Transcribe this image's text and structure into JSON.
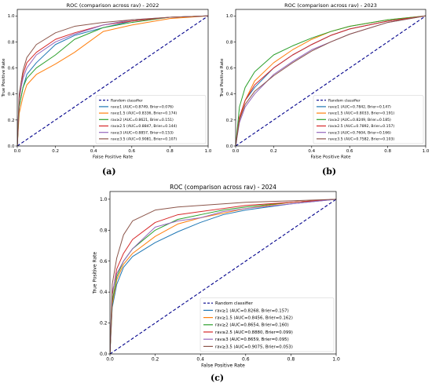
{
  "figure": {
    "captions": [
      "(a)",
      "(b)",
      "(c)"
    ]
  },
  "chart_data": [
    {
      "type": "line",
      "title": "ROC (comparison across rav) - 2022",
      "xlabel": "False Positive Rate",
      "ylabel": "True Positive Rate",
      "xlim": [
        0,
        1
      ],
      "ylim": [
        0,
        1.05
      ],
      "xticks": [
        "0.0",
        "0.2",
        "0.4",
        "0.6",
        "0.8",
        "1.0"
      ],
      "yticks": [
        "0.0",
        "0.2",
        "0.4",
        "0.6",
        "0.8",
        "1.0"
      ],
      "grid": false,
      "legend_position": "bottom-right",
      "random_line": {
        "name": "Random classifier",
        "color": "#00008b",
        "x": [
          0,
          1
        ],
        "y": [
          0,
          1
        ]
      },
      "series": [
        {
          "name": "rav≥1 (AUC=0.8749, Brier=0.076)",
          "color": "#1f77b4",
          "x": [
            0,
            0.01,
            0.03,
            0.05,
            0.1,
            0.2,
            0.3,
            0.45,
            0.6,
            0.8,
            1.0
          ],
          "y": [
            0,
            0.3,
            0.45,
            0.55,
            0.64,
            0.78,
            0.85,
            0.91,
            0.96,
            0.99,
            1.0
          ]
        },
        {
          "name": "rav≥1.5 (AUC=0.8336, Brier=0.174)",
          "color": "#ff7f0e",
          "x": [
            0,
            0.01,
            0.03,
            0.05,
            0.1,
            0.2,
            0.3,
            0.45,
            0.6,
            0.8,
            1.0
          ],
          "y": [
            0,
            0.25,
            0.38,
            0.47,
            0.55,
            0.63,
            0.72,
            0.88,
            0.93,
            0.98,
            1.0
          ]
        },
        {
          "name": "rav≥2 (AUC=0.8621, Brier=0.151)",
          "color": "#2ca02c",
          "x": [
            0,
            0.01,
            0.03,
            0.05,
            0.1,
            0.2,
            0.3,
            0.45,
            0.6,
            0.8,
            1.0
          ],
          "y": [
            0,
            0.3,
            0.45,
            0.52,
            0.6,
            0.7,
            0.82,
            0.91,
            0.95,
            0.99,
            1.0
          ]
        },
        {
          "name": "rav≥2.5 (AUC=0.8847, Brier=0.144)",
          "color": "#d62728",
          "x": [
            0,
            0.01,
            0.03,
            0.05,
            0.1,
            0.2,
            0.3,
            0.45,
            0.6,
            0.8,
            1.0
          ],
          "y": [
            0,
            0.35,
            0.55,
            0.64,
            0.72,
            0.82,
            0.87,
            0.93,
            0.96,
            0.99,
            1.0
          ]
        },
        {
          "name": "rav≥3 (AUC=0.8857, Brier=0.153)",
          "color": "#9467bd",
          "x": [
            0,
            0.01,
            0.03,
            0.05,
            0.1,
            0.2,
            0.3,
            0.45,
            0.6,
            0.8,
            1.0
          ],
          "y": [
            0,
            0.38,
            0.52,
            0.6,
            0.7,
            0.8,
            0.86,
            0.93,
            0.97,
            0.99,
            1.0
          ]
        },
        {
          "name": "rav≥3.5 (AUC=0.9081, Brier=0.107)",
          "color": "#8c564b",
          "x": [
            0,
            0.01,
            0.03,
            0.05,
            0.1,
            0.2,
            0.3,
            0.45,
            0.6,
            0.8,
            1.0
          ],
          "y": [
            0,
            0.4,
            0.58,
            0.68,
            0.78,
            0.87,
            0.92,
            0.95,
            0.97,
            0.99,
            1.0
          ]
        }
      ]
    },
    {
      "type": "line",
      "title": "ROC (comparison across rav) - 2023",
      "xlabel": "False Positive Rate",
      "ylabel": "True Positive Rate",
      "xlim": [
        0,
        1
      ],
      "ylim": [
        0,
        1.05
      ],
      "xticks": [
        "0.0",
        "0.2",
        "0.4",
        "0.6",
        "0.8",
        "1.0"
      ],
      "yticks": [
        "0.0",
        "0.2",
        "0.4",
        "0.6",
        "0.8",
        "1.0"
      ],
      "grid": false,
      "legend_position": "bottom-right",
      "random_line": {
        "name": "Random classifier",
        "color": "#00008b",
        "x": [
          0,
          1
        ],
        "y": [
          0,
          1
        ]
      },
      "series": [
        {
          "name": "rav≥1 (AUC=0.7842, Brier=0.147)",
          "color": "#1f77b4",
          "x": [
            0,
            0.02,
            0.05,
            0.1,
            0.2,
            0.3,
            0.4,
            0.5,
            0.6,
            0.8,
            1.0
          ],
          "y": [
            0,
            0.22,
            0.35,
            0.45,
            0.6,
            0.7,
            0.78,
            0.85,
            0.9,
            0.96,
            1.0
          ]
        },
        {
          "name": "rav≥1.5 (AUC=0.8033, Brier=0.191)",
          "color": "#ff7f0e",
          "x": [
            0,
            0.02,
            0.05,
            0.1,
            0.2,
            0.3,
            0.4,
            0.5,
            0.6,
            0.8,
            1.0
          ],
          "y": [
            0,
            0.2,
            0.35,
            0.5,
            0.64,
            0.74,
            0.82,
            0.88,
            0.92,
            0.97,
            1.0
          ]
        },
        {
          "name": "rav≥2 (AUC=0.8249, Brier=0.185)",
          "color": "#2ca02c",
          "x": [
            0,
            0.02,
            0.05,
            0.1,
            0.2,
            0.3,
            0.4,
            0.5,
            0.6,
            0.8,
            1.0
          ],
          "y": [
            0,
            0.3,
            0.45,
            0.57,
            0.7,
            0.77,
            0.83,
            0.88,
            0.92,
            0.97,
            1.0
          ]
        },
        {
          "name": "rav≥2.5 (AUC=0.7892, Brier=0.157)",
          "color": "#d62728",
          "x": [
            0,
            0.02,
            0.05,
            0.1,
            0.2,
            0.3,
            0.4,
            0.5,
            0.6,
            0.8,
            1.0
          ],
          "y": [
            0,
            0.22,
            0.35,
            0.47,
            0.6,
            0.7,
            0.78,
            0.85,
            0.9,
            0.96,
            1.0
          ]
        },
        {
          "name": "rav≥3 (AUC=0.7604, Brier=0.166)",
          "color": "#9467bd",
          "x": [
            0,
            0.02,
            0.05,
            0.1,
            0.2,
            0.3,
            0.4,
            0.5,
            0.6,
            0.8,
            1.0
          ],
          "y": [
            0,
            0.18,
            0.3,
            0.4,
            0.55,
            0.65,
            0.74,
            0.8,
            0.86,
            0.95,
            1.0
          ]
        },
        {
          "name": "rav≥3.5 (AUC=0.7582, Brier=0.103)",
          "color": "#8c564b",
          "x": [
            0,
            0.02,
            0.05,
            0.1,
            0.2,
            0.3,
            0.4,
            0.5,
            0.6,
            0.8,
            1.0
          ],
          "y": [
            0,
            0.2,
            0.32,
            0.42,
            0.54,
            0.64,
            0.73,
            0.8,
            0.86,
            0.95,
            1.0
          ]
        }
      ]
    },
    {
      "type": "line",
      "title": "ROC (comparison across rav) - 2024",
      "xlabel": "False Positive Rate",
      "ylabel": "True Positive Rate",
      "xlim": [
        0,
        1
      ],
      "ylim": [
        0,
        1.05
      ],
      "xticks": [
        "0.0",
        "0.2",
        "0.4",
        "0.6",
        "0.8",
        "1.0"
      ],
      "yticks": [
        "0.0",
        "0.2",
        "0.4",
        "0.6",
        "0.8",
        "1.0"
      ],
      "grid": false,
      "legend_position": "bottom-right",
      "random_line": {
        "name": "Random classifier",
        "color": "#00008b",
        "x": [
          0,
          1
        ],
        "y": [
          0,
          1
        ]
      },
      "series": [
        {
          "name": "rav≥1 (AUC=0.8268, Brier=0.157)",
          "color": "#1f77b4",
          "x": [
            0,
            0.01,
            0.03,
            0.06,
            0.1,
            0.2,
            0.3,
            0.4,
            0.5,
            0.6,
            0.8,
            1.0
          ],
          "y": [
            0,
            0.3,
            0.45,
            0.56,
            0.63,
            0.72,
            0.79,
            0.85,
            0.9,
            0.93,
            0.97,
            1.0
          ]
        },
        {
          "name": "rav≥1.5 (AUC=0.8456, Brier=0.162)",
          "color": "#ff7f0e",
          "x": [
            0,
            0.01,
            0.03,
            0.06,
            0.1,
            0.2,
            0.3,
            0.4,
            0.5,
            0.6,
            0.8,
            1.0
          ],
          "y": [
            0,
            0.32,
            0.48,
            0.58,
            0.65,
            0.76,
            0.84,
            0.88,
            0.91,
            0.94,
            0.98,
            1.0
          ]
        },
        {
          "name": "rav≥2 (AUC=0.8654, Brier=0.160)",
          "color": "#2ca02c",
          "x": [
            0,
            0.01,
            0.03,
            0.06,
            0.1,
            0.2,
            0.3,
            0.4,
            0.5,
            0.6,
            0.8,
            1.0
          ],
          "y": [
            0,
            0.34,
            0.5,
            0.6,
            0.68,
            0.8,
            0.87,
            0.9,
            0.93,
            0.95,
            0.98,
            1.0
          ]
        },
        {
          "name": "rav≥2.5 (AUC=0.8880, Brier=0.099)",
          "color": "#d62728",
          "x": [
            0,
            0.01,
            0.03,
            0.06,
            0.1,
            0.2,
            0.3,
            0.4,
            0.5,
            0.6,
            0.8,
            1.0
          ],
          "y": [
            0,
            0.38,
            0.55,
            0.65,
            0.74,
            0.85,
            0.9,
            0.92,
            0.94,
            0.96,
            0.98,
            1.0
          ]
        },
        {
          "name": "rav≥3 (AUC=0.8659, Brier=0.095)",
          "color": "#9467bd",
          "x": [
            0,
            0.01,
            0.03,
            0.06,
            0.1,
            0.2,
            0.3,
            0.4,
            0.5,
            0.6,
            0.8,
            1.0
          ],
          "y": [
            0,
            0.4,
            0.52,
            0.6,
            0.68,
            0.82,
            0.86,
            0.88,
            0.92,
            0.94,
            0.97,
            1.0
          ]
        },
        {
          "name": "rav≥3.5 (AUC=0.9075, Brier=0.053)",
          "color": "#8c564b",
          "x": [
            0,
            0.01,
            0.03,
            0.06,
            0.1,
            0.2,
            0.3,
            0.4,
            0.5,
            0.6,
            0.8,
            1.0
          ],
          "y": [
            0,
            0.45,
            0.62,
            0.77,
            0.86,
            0.93,
            0.95,
            0.96,
            0.97,
            0.98,
            0.99,
            1.0
          ]
        }
      ]
    }
  ]
}
